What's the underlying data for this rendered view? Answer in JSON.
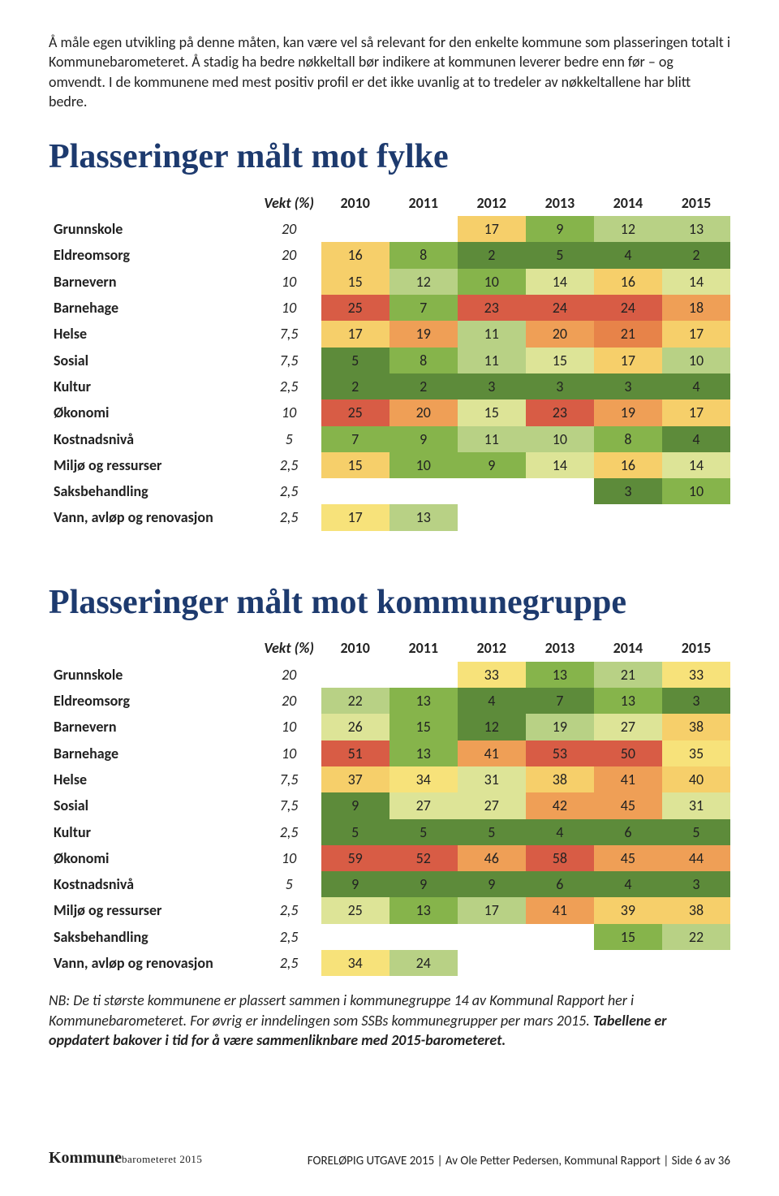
{
  "intro": "Å måle egen utvikling på denne måten, kan være vel så relevant for den enkelte kommune som plasseringen totalt i Kommunebarometeret. Å stadig ha bedre nøkkeltall bør indikere at kommunen leverer bedre enn før – og omvendt. I de kommunene med mest positiv profil er det ikke uvanlig at to tredeler av nøkkeltallene har blitt bedre.",
  "colors": {
    "title": "#1d3a6e",
    "heat": {
      "green_dark": "#5d8b3a",
      "green": "#86b44b",
      "green_light": "#b8d185",
      "yellow_green": "#dde497",
      "yellow": "#f7e27a",
      "yellow_orange": "#f6cf6a",
      "orange": "#ef9f56",
      "orange_dark": "#e78349",
      "red": "#d85c45"
    }
  },
  "typography": {
    "body_size": 18,
    "title_size": 42,
    "title_font": "Georgia"
  },
  "table_common": {
    "vekt_header": "Vekt (%)",
    "years": [
      "2010",
      "2011",
      "2012",
      "2013",
      "2014",
      "2015"
    ]
  },
  "table1": {
    "title": "Plasseringer målt mot fylke",
    "rows": [
      {
        "label": "Grunnskole",
        "vekt": "20",
        "vals": [
          "",
          "",
          "17",
          "9",
          "12",
          "13"
        ],
        "cols": [
          "",
          "",
          "yellow_orange",
          "green",
          "green_light",
          "green_light"
        ]
      },
      {
        "label": "Eldreomsorg",
        "vekt": "20",
        "vals": [
          "16",
          "8",
          "2",
          "5",
          "4",
          "2"
        ],
        "cols": [
          "yellow_orange",
          "green",
          "green_dark",
          "green_dark",
          "green_dark",
          "green_dark"
        ]
      },
      {
        "label": "Barnevern",
        "vekt": "10",
        "vals": [
          "15",
          "12",
          "10",
          "14",
          "16",
          "14"
        ],
        "cols": [
          "yellow_orange",
          "green_light",
          "green",
          "yellow_green",
          "yellow_orange",
          "yellow_green"
        ]
      },
      {
        "label": "Barnehage",
        "vekt": "10",
        "vals": [
          "25",
          "7",
          "23",
          "24",
          "24",
          "18"
        ],
        "cols": [
          "red",
          "green",
          "red",
          "red",
          "red",
          "orange"
        ]
      },
      {
        "label": "Helse",
        "vekt": "7,5",
        "vals": [
          "17",
          "19",
          "11",
          "20",
          "21",
          "17"
        ],
        "cols": [
          "yellow_orange",
          "orange",
          "green_light",
          "orange",
          "orange_dark",
          "yellow_orange"
        ]
      },
      {
        "label": "Sosial",
        "vekt": "7,5",
        "vals": [
          "5",
          "8",
          "11",
          "15",
          "17",
          "10"
        ],
        "cols": [
          "green_dark",
          "green",
          "green_light",
          "yellow_green",
          "yellow_orange",
          "green_light"
        ]
      },
      {
        "label": "Kultur",
        "vekt": "2,5",
        "vals": [
          "2",
          "2",
          "3",
          "3",
          "3",
          "4"
        ],
        "cols": [
          "green_dark",
          "green_dark",
          "green_dark",
          "green_dark",
          "green_dark",
          "green_dark"
        ]
      },
      {
        "label": "Økonomi",
        "vekt": "10",
        "vals": [
          "25",
          "20",
          "15",
          "23",
          "19",
          "17"
        ],
        "cols": [
          "red",
          "orange",
          "yellow_green",
          "red",
          "orange",
          "yellow_orange"
        ]
      },
      {
        "label": "Kostnadsnivå",
        "vekt": "5",
        "vals": [
          "7",
          "9",
          "11",
          "10",
          "8",
          "4"
        ],
        "cols": [
          "green",
          "green",
          "green_light",
          "green_light",
          "green",
          "green_dark"
        ]
      },
      {
        "label": "Miljø og ressurser",
        "vekt": "2,5",
        "vals": [
          "15",
          "10",
          "9",
          "14",
          "16",
          "14"
        ],
        "cols": [
          "yellow_orange",
          "green",
          "green",
          "yellow_green",
          "yellow_orange",
          "yellow_green"
        ]
      },
      {
        "label": "Saksbehandling",
        "vekt": "2,5",
        "vals": [
          "",
          "",
          "",
          "",
          "3",
          "10"
        ],
        "cols": [
          "",
          "",
          "",
          "",
          "green_dark",
          "green"
        ]
      },
      {
        "label": "Vann, avløp og renovasjon",
        "vekt": "2,5",
        "vals": [
          "17",
          "13",
          "",
          "",
          "",
          ""
        ],
        "cols": [
          "yellow",
          "green_light",
          "",
          "",
          "",
          ""
        ]
      }
    ]
  },
  "table2": {
    "title": "Plasseringer målt mot kommunegruppe",
    "rows": [
      {
        "label": "Grunnskole",
        "vekt": "20",
        "vals": [
          "",
          "",
          "33",
          "13",
          "21",
          "33"
        ],
        "cols": [
          "",
          "",
          "yellow",
          "green",
          "green_light",
          "yellow"
        ]
      },
      {
        "label": "Eldreomsorg",
        "vekt": "20",
        "vals": [
          "22",
          "13",
          "4",
          "7",
          "13",
          "3"
        ],
        "cols": [
          "green_light",
          "green",
          "green_dark",
          "green_dark",
          "green",
          "green_dark"
        ]
      },
      {
        "label": "Barnevern",
        "vekt": "10",
        "vals": [
          "26",
          "15",
          "12",
          "19",
          "27",
          "38"
        ],
        "cols": [
          "yellow_green",
          "green",
          "green_dark",
          "green_light",
          "yellow_green",
          "yellow_orange"
        ]
      },
      {
        "label": "Barnehage",
        "vekt": "10",
        "vals": [
          "51",
          "13",
          "41",
          "53",
          "50",
          "35"
        ],
        "cols": [
          "red",
          "green",
          "orange",
          "red",
          "red",
          "yellow"
        ]
      },
      {
        "label": "Helse",
        "vekt": "7,5",
        "vals": [
          "37",
          "34",
          "31",
          "38",
          "41",
          "40"
        ],
        "cols": [
          "yellow_orange",
          "yellow",
          "yellow_green",
          "yellow_orange",
          "orange",
          "yellow_orange"
        ]
      },
      {
        "label": "Sosial",
        "vekt": "7,5",
        "vals": [
          "9",
          "27",
          "27",
          "42",
          "45",
          "31"
        ],
        "cols": [
          "green_dark",
          "yellow_green",
          "yellow_green",
          "orange",
          "orange",
          "yellow_green"
        ]
      },
      {
        "label": "Kultur",
        "vekt": "2,5",
        "vals": [
          "5",
          "5",
          "5",
          "4",
          "6",
          "5"
        ],
        "cols": [
          "green_dark",
          "green_dark",
          "green_dark",
          "green_dark",
          "green_dark",
          "green_dark"
        ]
      },
      {
        "label": "Økonomi",
        "vekt": "10",
        "vals": [
          "59",
          "52",
          "46",
          "58",
          "45",
          "44"
        ],
        "cols": [
          "red",
          "red",
          "orange",
          "red",
          "orange",
          "orange"
        ]
      },
      {
        "label": "Kostnadsnivå",
        "vekt": "5",
        "vals": [
          "9",
          "9",
          "9",
          "6",
          "4",
          "3"
        ],
        "cols": [
          "green_dark",
          "green_dark",
          "green_dark",
          "green_dark",
          "green_dark",
          "green_dark"
        ]
      },
      {
        "label": "Miljø og ressurser",
        "vekt": "2,5",
        "vals": [
          "25",
          "13",
          "17",
          "41",
          "39",
          "38"
        ],
        "cols": [
          "yellow_green",
          "green",
          "green_light",
          "orange",
          "yellow_orange",
          "yellow_orange"
        ]
      },
      {
        "label": "Saksbehandling",
        "vekt": "2,5",
        "vals": [
          "",
          "",
          "",
          "",
          "15",
          "22"
        ],
        "cols": [
          "",
          "",
          "",
          "",
          "green",
          "green_light"
        ]
      },
      {
        "label": "Vann, avløp og renovasjon",
        "vekt": "2,5",
        "vals": [
          "34",
          "24",
          "",
          "",
          "",
          ""
        ],
        "cols": [
          "yellow",
          "green_light",
          "",
          "",
          "",
          ""
        ]
      }
    ]
  },
  "note": {
    "italic": "NB: De ti største kommunene er plassert sammen i kommunegruppe 14 av Kommunal Rapport her i Kommunebarometeret. For øvrig er inndelingen som SSBs kommunegrupper per mars 2015. ",
    "bold": "Tabellene er oppdatert bakover i tid for å være sammenliknbare med 2015-barometeret."
  },
  "footer": {
    "brand": "Kommune",
    "brand_rest": "barometeret 2015",
    "right": "FORELØPIG UTGAVE 2015 | Av Ole Petter Pedersen, Kommunal Rapport | Side 6 av 36"
  }
}
